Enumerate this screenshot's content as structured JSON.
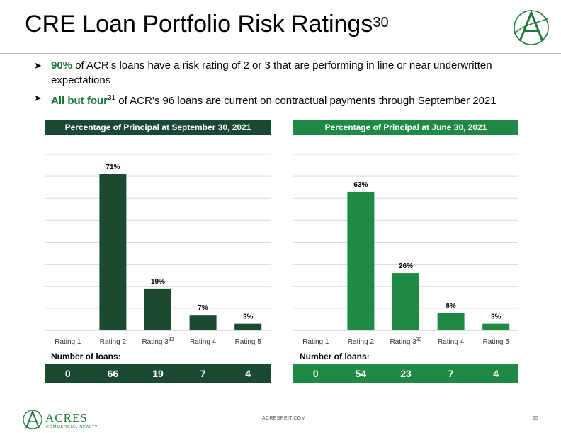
{
  "title": {
    "text": "CRE Loan Portfolio Risk Ratings",
    "footnote": "30"
  },
  "bullets": [
    {
      "bold": "90%",
      "text": " of ACR’s loans have a risk rating of 2 or 3 that are performing in line or near underwritten expectations",
      "sup": ""
    },
    {
      "bold": "All but four",
      "sup": "31",
      "text": " of ACR’s 96 loans are current on contractual payments through September 2021"
    }
  ],
  "colors": {
    "dark_green": "#1a4a32",
    "green": "#1e8a45",
    "accent_text": "#1e7a3c"
  },
  "loans_label": "Number of loans:",
  "chart_data": [
    {
      "type": "bar",
      "title": "Percentage of Principal at September 30, 2021",
      "categories": [
        "Rating 1",
        "Rating 2",
        "Rating 3",
        "Rating 4",
        "Rating 5"
      ],
      "category_sups": [
        "",
        "",
        "32",
        "",
        ""
      ],
      "values": [
        0,
        71,
        19,
        7,
        3
      ],
      "data_labels": [
        "",
        "71%",
        "19%",
        "7%",
        "3%"
      ],
      "ylim": [
        0,
        80
      ],
      "grid": true,
      "color": "#1a4a32",
      "loan_counts": [
        "0",
        "66",
        "19",
        "7",
        "4"
      ]
    },
    {
      "type": "bar",
      "title": "Percentage of Principal at June 30, 2021",
      "categories": [
        "Rating 1",
        "Rating 2",
        "Rating 3",
        "Rating 4",
        "Rating 5"
      ],
      "category_sups": [
        "",
        "",
        "32",
        "",
        ""
      ],
      "values": [
        0,
        63,
        26,
        8,
        3
      ],
      "data_labels": [
        "",
        "63%",
        "26%",
        "8%",
        "3%"
      ],
      "ylim": [
        0,
        80
      ],
      "grid": true,
      "color": "#1e8a45",
      "loan_counts": [
        "0",
        "54",
        "23",
        "7",
        "4"
      ]
    }
  ],
  "logo": {
    "name": "ACRES",
    "tagline": "COMMERCIAL REALTY"
  },
  "footer": {
    "url": "ACRESREIT.COM",
    "page": "15"
  }
}
